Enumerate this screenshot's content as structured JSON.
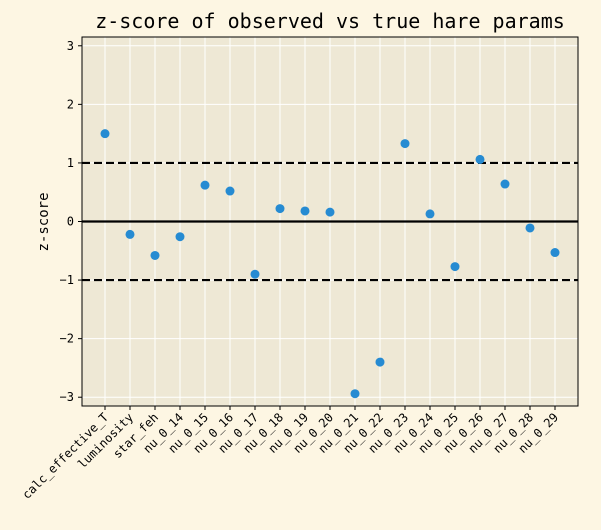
{
  "chart_data": {
    "type": "scatter",
    "title": "z-score of observed vs true hare params",
    "xlabel": "",
    "ylabel": "z-score",
    "categories": [
      "calc_effective_T",
      "luminosity",
      "star_feh",
      "nu_0_14",
      "nu_0_15",
      "nu_0_16",
      "nu_0_17",
      "nu_0_18",
      "nu_0_19",
      "nu_0_20",
      "nu_0_21",
      "nu_0_22",
      "nu_0_23",
      "nu_0_24",
      "nu_0_25",
      "nu_0_26",
      "nu_0_27",
      "nu_0_28",
      "nu_0_29"
    ],
    "values": [
      1.5,
      -0.22,
      -0.58,
      -0.26,
      0.62,
      0.52,
      -0.9,
      0.22,
      0.18,
      0.16,
      -2.94,
      -2.4,
      1.33,
      0.13,
      -0.77,
      1.06,
      0.64,
      -0.11,
      -0.53
    ],
    "ylim": [
      -3.15,
      3.15
    ],
    "yticks": [
      -3,
      -2,
      -1,
      0,
      1,
      2,
      3
    ],
    "reference_lines": [
      {
        "y": 0,
        "style": "solid"
      },
      {
        "y": 1,
        "style": "dashed"
      },
      {
        "y": -1,
        "style": "dashed"
      }
    ],
    "grid": true,
    "colors": {
      "point": "#268bd2",
      "plot_bg": "#eee8d5",
      "figure_bg": "#fdf6e3",
      "grid": "#ffffff"
    }
  }
}
